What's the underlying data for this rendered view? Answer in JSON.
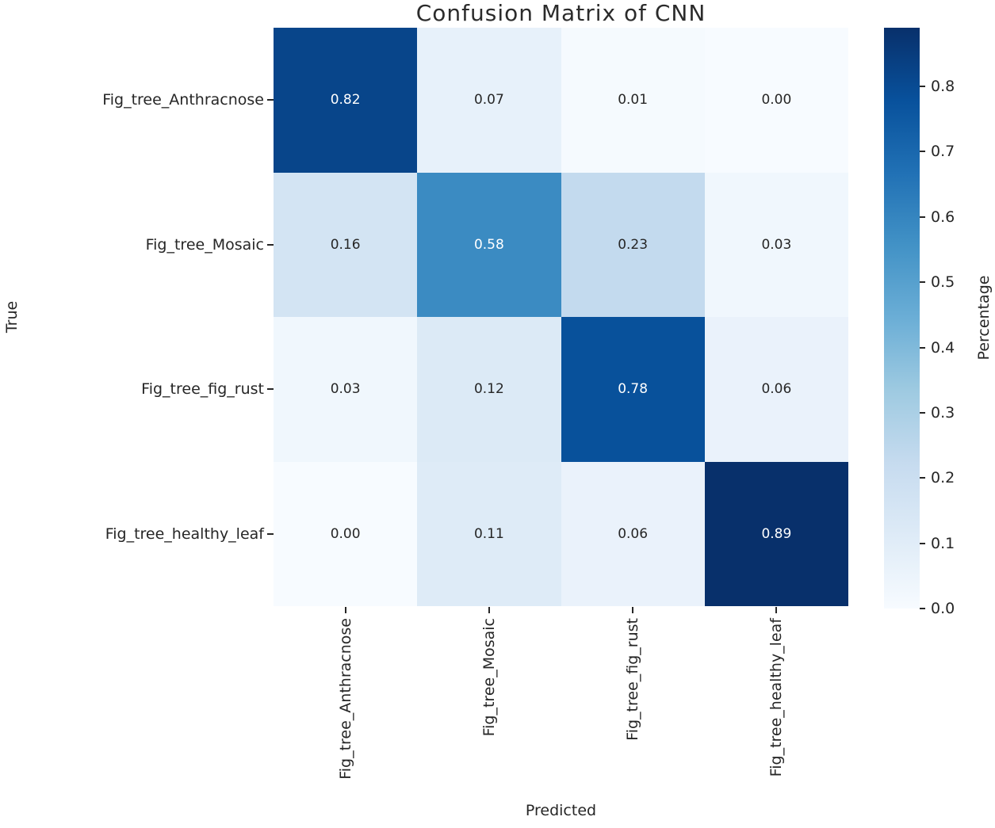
{
  "chart_data": {
    "type": "heatmap",
    "title": "Confusion Matrix of CNN",
    "xlabel": "Predicted",
    "ylabel": "True",
    "colorbar_label": "Percentage",
    "x_categories": [
      "Fig_tree_Anthracnose",
      "Fig_tree_Mosaic",
      "Fig_tree_fig_rust",
      "Fig_tree_healthy_leaf"
    ],
    "y_categories": [
      "Fig_tree_Anthracnose",
      "Fig_tree_Mosaic",
      "Fig_tree_fig_rust",
      "Fig_tree_healthy_leaf"
    ],
    "values": [
      [
        0.82,
        0.07,
        0.01,
        0.0
      ],
      [
        0.16,
        0.58,
        0.23,
        0.03
      ],
      [
        0.03,
        0.12,
        0.78,
        0.06
      ],
      [
        0.0,
        0.11,
        0.06,
        0.89
      ]
    ],
    "vmin": 0.0,
    "vmax": 0.89,
    "colormap": "Blues",
    "colormap_stops": [
      "#f7fbff",
      "#deebf7",
      "#c6dbef",
      "#9ecae1",
      "#6baed6",
      "#4292c6",
      "#2171b5",
      "#08519c",
      "#08306b"
    ],
    "colorbar_ticks": [
      0.0,
      0.1,
      0.2,
      0.3,
      0.4,
      0.5,
      0.6,
      0.7,
      0.8
    ],
    "colorbar_position": "right",
    "grid": false,
    "annotation_text_light": "#ffffff",
    "annotation_text_dark": "#262626",
    "axis_text_color": "#262626",
    "title_color": "#2b2b2b"
  }
}
